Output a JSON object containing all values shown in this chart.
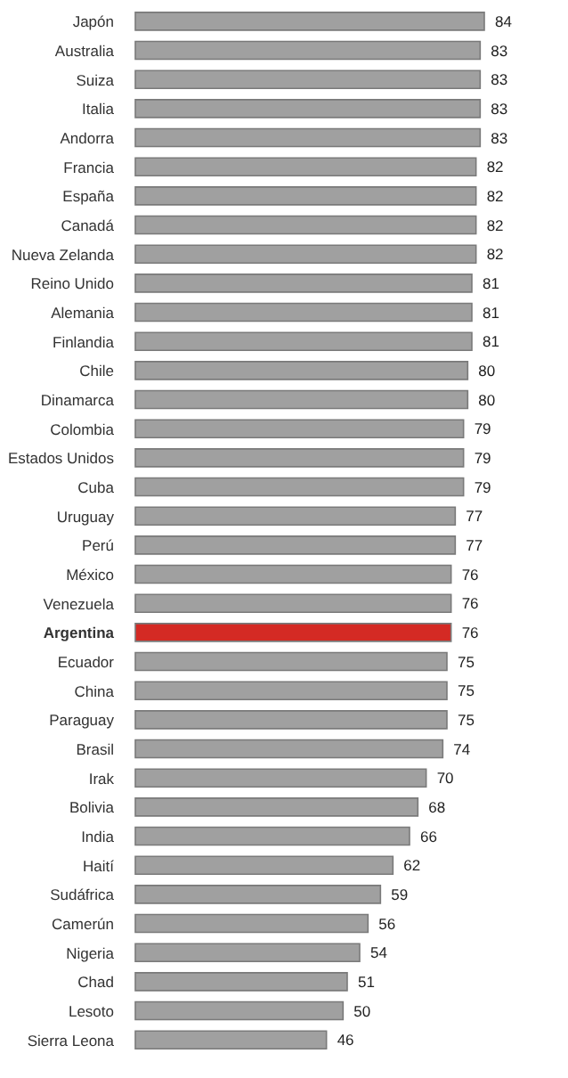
{
  "chart_data": {
    "type": "bar",
    "orientation": "horizontal",
    "data_labels": true,
    "categories": [
      "Japón",
      "Australia",
      "Suiza",
      "Italia",
      "Andorra",
      "Francia",
      "España",
      "Canadá",
      "Nueva Zelanda",
      "Reino Unido",
      "Alemania",
      "Finlandia",
      "Chile",
      "Dinamarca",
      "Colombia",
      "Estados Unidos",
      "Cuba",
      "Uruguay",
      "Perú",
      "México",
      "Venezuela",
      "Argentina",
      "Ecuador",
      "China",
      "Paraguay",
      "Brasil",
      "Irak",
      "Bolivia",
      "India",
      "Haití",
      "Sudáfrica",
      "Camerún",
      "Nigeria",
      "Chad",
      "Lesoto",
      "Sierra Leona"
    ],
    "values": [
      84,
      83,
      83,
      83,
      83,
      82,
      82,
      82,
      82,
      81,
      81,
      81,
      80,
      80,
      79,
      79,
      79,
      77,
      77,
      76,
      76,
      76,
      75,
      75,
      75,
      74,
      70,
      68,
      66,
      62,
      59,
      56,
      54,
      51,
      50,
      46
    ],
    "colors": [
      "#a0a0a0",
      "#a0a0a0",
      "#a0a0a0",
      "#a0a0a0",
      "#a0a0a0",
      "#a0a0a0",
      "#a0a0a0",
      "#a0a0a0",
      "#a0a0a0",
      "#a0a0a0",
      "#a0a0a0",
      "#a0a0a0",
      "#a0a0a0",
      "#a0a0a0",
      "#a0a0a0",
      "#a0a0a0",
      "#a0a0a0",
      "#a0a0a0",
      "#a0a0a0",
      "#a0a0a0",
      "#a0a0a0",
      "#d42a24",
      "#a0a0a0",
      "#a0a0a0",
      "#a0a0a0",
      "#a0a0a0",
      "#a0a0a0",
      "#a0a0a0",
      "#a0a0a0",
      "#a0a0a0",
      "#a0a0a0",
      "#a0a0a0",
      "#a0a0a0",
      "#a0a0a0",
      "#a0a0a0",
      "#a0a0a0"
    ]
  }
}
